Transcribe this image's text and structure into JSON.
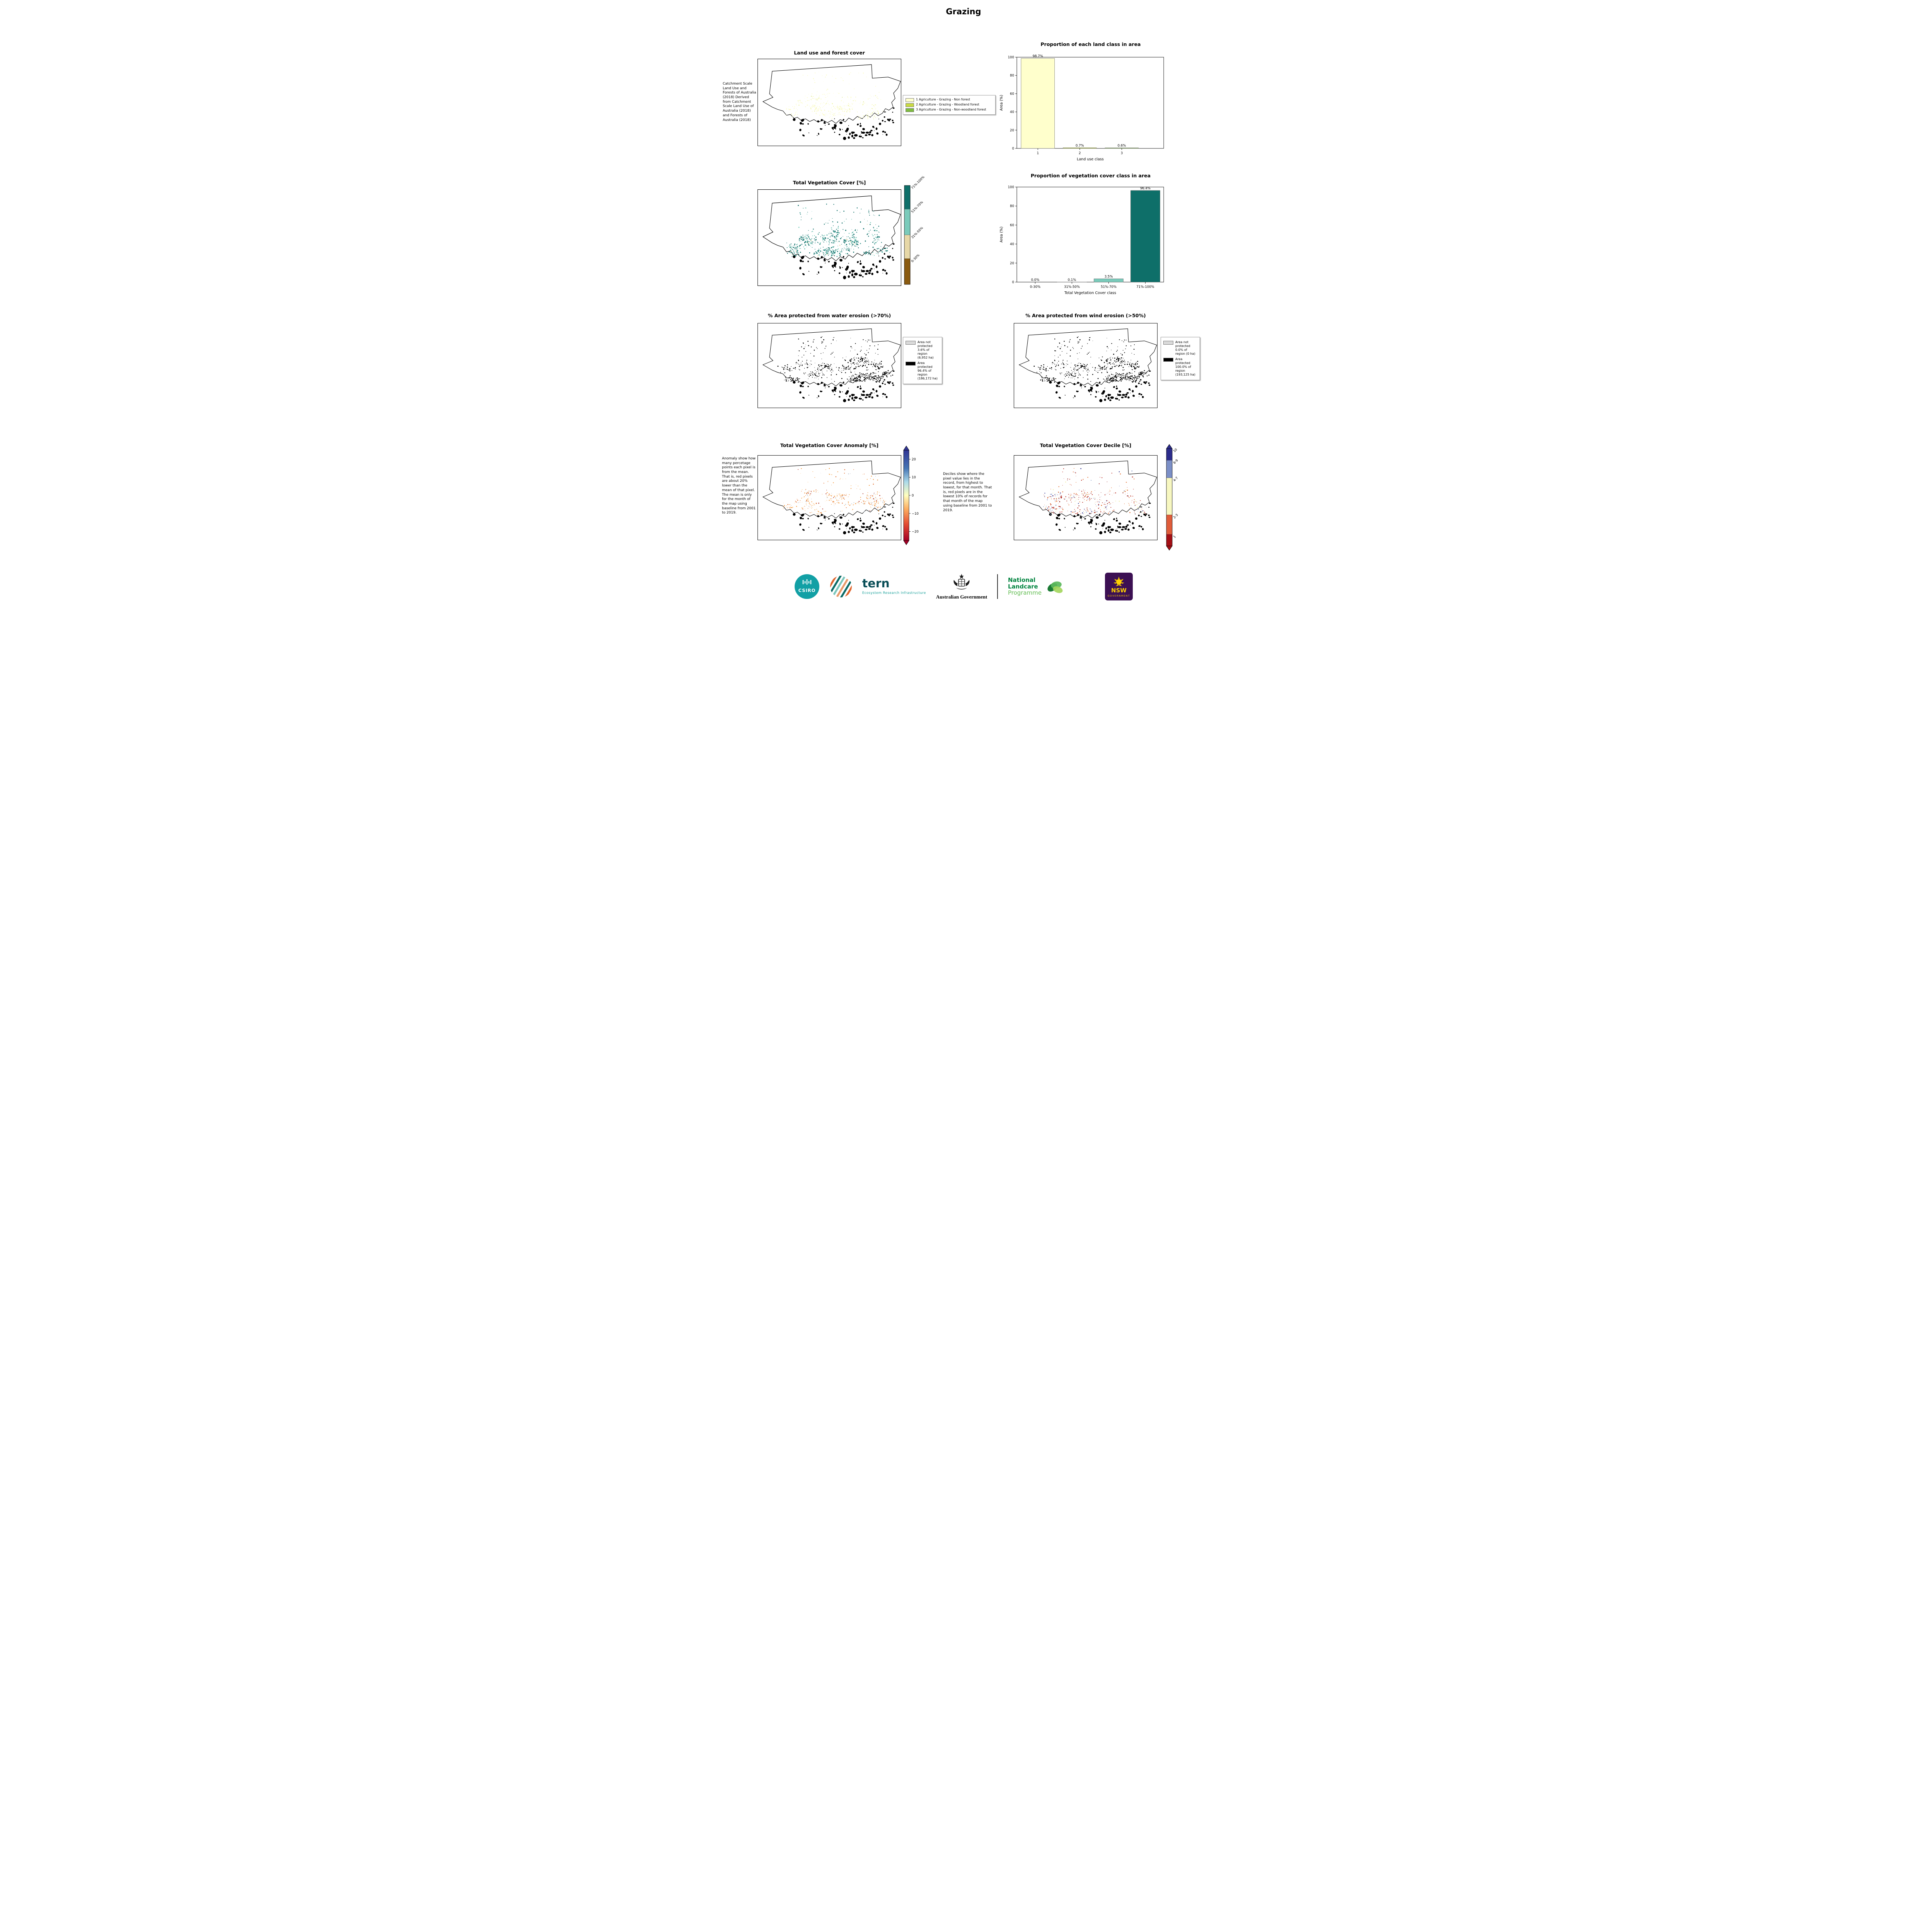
{
  "title": "Grazing",
  "landuse_map": {
    "title": "Land use and forest cover",
    "caption": "Catchment Scale Land Use and Forests of Australia (2018) Derived from Catchment Scale Land Use of Australia (2018) and Forests of Australia (2018)",
    "legend": [
      {
        "label": "1 Agriculture - Grazing - Non forest",
        "color": "#ffffcc"
      },
      {
        "label": "2 Agriculture - Grazing - Woodland forest",
        "color": "#c8d942"
      },
      {
        "label": "3 Agriculture - Grazing - Non-woodland forest",
        "color": "#7fbc41"
      }
    ]
  },
  "chart_data": [
    {
      "type": "bar",
      "title": "Proportion of each land class in area",
      "categories": [
        "1",
        "2",
        "3"
      ],
      "values": [
        98.7,
        0.7,
        0.6
      ],
      "value_labels": [
        "98.7%",
        "0.7%",
        "0.6%"
      ],
      "colors": [
        "#ffffcc",
        "#c8d942",
        "#7fbc41"
      ],
      "xlabel": "Land use class",
      "ylabel": "Area (%)",
      "ylim": [
        0,
        100
      ],
      "yticks": [
        0,
        20,
        40,
        60,
        80,
        100
      ]
    },
    {
      "type": "bar",
      "title": "Proportion of vegetation cover class in area",
      "categories": [
        "0-30%",
        "31%-50%",
        "51%-70%",
        "71%-100%"
      ],
      "values": [
        0.0,
        0.1,
        3.5,
        96.4
      ],
      "value_labels": [
        "0.0%",
        "0.1%",
        "3.5%",
        "96.4%"
      ],
      "colors": [
        "#8a5a0f",
        "#e7d8a7",
        "#7acbbb",
        "#0e6f69"
      ],
      "xlabel": "Total Vegetation Cover class",
      "ylabel": "Area (%)",
      "ylim": [
        0,
        100
      ],
      "yticks": [
        0,
        20,
        40,
        60,
        80,
        100
      ]
    }
  ],
  "veg_map": {
    "title": "Total Vegetation Cover [%]",
    "colorbar": [
      {
        "label": "71%-100%",
        "color": "#0e6f69",
        "frac": 0.24
      },
      {
        "label": "51%-70%",
        "color": "#7acbbb",
        "frac": 0.26
      },
      {
        "label": "31%-50%",
        "color": "#e7d8a7",
        "frac": 0.24
      },
      {
        "label": "0-30%",
        "color": "#8a5a0f",
        "frac": 0.26
      }
    ]
  },
  "water_map": {
    "title": "% Area protected from water erosion (>70%)",
    "legend": [
      {
        "label": "Area not protected 3.6% of region (6,952 ha)",
        "color": "#d9d9d9"
      },
      {
        "label": "Area protected 96.4% of region (186,172 ha)",
        "color": "#000000"
      }
    ]
  },
  "wind_map": {
    "title": "% Area protected from wind erosion (>50%)",
    "legend": [
      {
        "label": "Area not protected 0.0% of region (0 ha)",
        "color": "#d9d9d9"
      },
      {
        "label": "Area protected 100.0% of region (193,125 ha)",
        "color": "#000000"
      }
    ]
  },
  "anomaly_map": {
    "title": "Total Vegetation Cover Anomaly [%]",
    "caption": "Anomaly show how many percetage points each pixel is from the mean. That is, red pixels are about 20% lower than the mean of that pixel. The mean is only for the month of the map using baseline from 2001 to 2019.",
    "colorbar_ticks": [
      "20",
      "10",
      "0",
      "−10",
      "−20"
    ]
  },
  "decile_map": {
    "title": "Total Vegetation Cover Decile [%]",
    "caption": "Deciles show where the pixel value lies in the record, from highest to lowest, for that month. That is, red pixels are in the lowest 10% of records for that month of the map using baseline from 2001 to 2019.",
    "colorbar": [
      {
        "label": "10",
        "color": "#2c2c8c",
        "frac": 0.12
      },
      {
        "label": "8-9",
        "color": "#7b8fc7",
        "frac": 0.18
      },
      {
        "label": "4-7",
        "color": "#f7f7c0",
        "frac": 0.38
      },
      {
        "label": "2-3",
        "color": "#e05c3a",
        "frac": 0.2
      },
      {
        "label": "1",
        "color": "#a50f15",
        "frac": 0.12
      }
    ]
  },
  "maps": {
    "landuse": {
      "seed": 11,
      "n": 420,
      "size": 0.9,
      "palette": [
        [
          "#fbfbc8",
          0.85
        ],
        [
          "#eef3a0",
          0.12
        ],
        [
          "#cfe06a",
          0.03
        ]
      ]
    },
    "veg": {
      "seed": 21,
      "n": 650,
      "size": 1.0,
      "palette": [
        [
          "#0e6f69",
          0.62
        ],
        [
          "#7acbbb",
          0.25
        ],
        [
          "#2a8f86",
          0.1
        ],
        [
          "#e7d8a7",
          0.03
        ]
      ]
    },
    "water": {
      "seed": 31,
      "n": 660,
      "size": 1.0,
      "palette": [
        [
          "#000000",
          0.97
        ],
        [
          "#bdbdbd",
          0.03
        ]
      ]
    },
    "wind": {
      "seed": 31,
      "n": 660,
      "size": 1.0,
      "palette": [
        [
          "#000000",
          1.0
        ]
      ]
    },
    "anomaly": {
      "seed": 41,
      "n": 400,
      "size": 0.9,
      "palette": [
        [
          "#f49a3c",
          0.38
        ],
        [
          "#fdd49e",
          0.22
        ],
        [
          "#e2641f",
          0.18
        ],
        [
          "#bfc8d2",
          0.14
        ],
        [
          "#b03a2e",
          0.08
        ]
      ]
    },
    "decile": {
      "seed": 51,
      "n": 430,
      "size": 0.9,
      "palette": [
        [
          "#b6281e",
          0.28
        ],
        [
          "#e2641f",
          0.22
        ],
        [
          "#f2efae",
          0.18
        ],
        [
          "#8496c8",
          0.14
        ],
        [
          "#8c1010",
          0.1
        ],
        [
          "#2d2f90",
          0.08
        ]
      ]
    }
  },
  "anomaly_colors": {
    "top": "#313695",
    "mid": "#ffffbf",
    "bottom": "#a50026"
  },
  "footer": {
    "csiro": "CSIRO",
    "tern": "tern",
    "tern_sub": "Ecosystem Research Infrastructure",
    "aus_gov": "Australian Government",
    "nlp_line1": "National",
    "nlp_line2": "Landcare",
    "nlp_line3": "Programme",
    "nsw": "NSW",
    "nsw_sub": "GOVERNMENT"
  }
}
